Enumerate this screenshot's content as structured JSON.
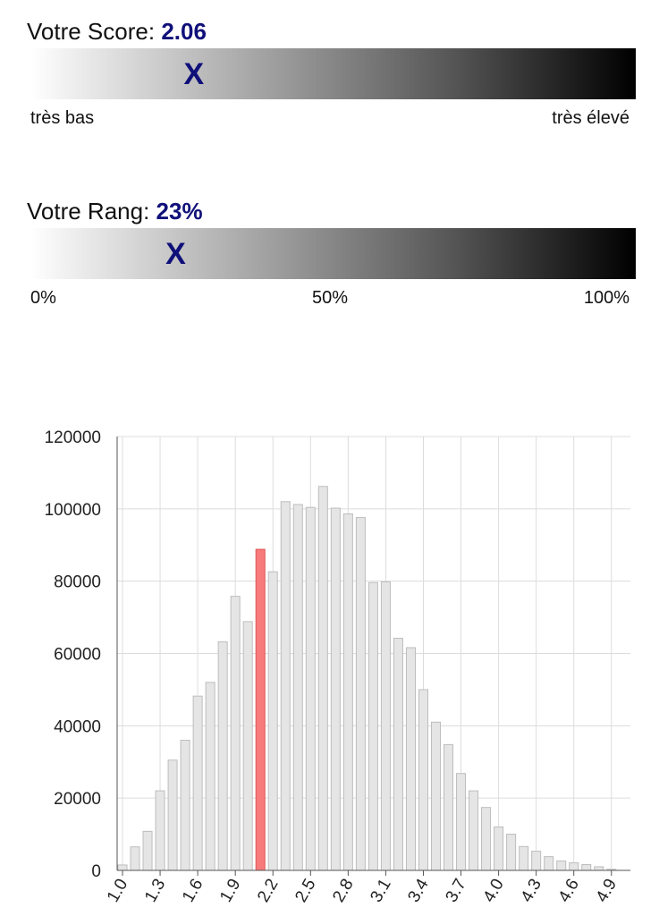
{
  "score": {
    "label": "Votre Score:",
    "value": "2.06",
    "marker": "X",
    "marker_fraction": 0.27,
    "scale_low": "très bas",
    "scale_high": "très élevé"
  },
  "rank": {
    "label": "Votre Rang:",
    "value": "23%",
    "marker": "X",
    "marker_fraction": 0.24,
    "scale_labels": [
      "0%",
      "50%",
      "100%"
    ]
  },
  "colors": {
    "accent_text": "#10107a",
    "bar_fill": "#e5e5e5",
    "bar_stroke": "#bdbdbd",
    "highlight_fill": "#f77b7b",
    "highlight_stroke": "#e05555"
  },
  "chart_data": {
    "type": "bar",
    "x": [
      1.0,
      1.1,
      1.2,
      1.3,
      1.4,
      1.5,
      1.6,
      1.7,
      1.8,
      1.9,
      2.0,
      2.1,
      2.2,
      2.3,
      2.4,
      2.5,
      2.6,
      2.7,
      2.8,
      2.9,
      3.0,
      3.1,
      3.2,
      3.3,
      3.4,
      3.5,
      3.6,
      3.7,
      3.8,
      3.9,
      4.0,
      4.1,
      4.2,
      4.3,
      4.4,
      4.5,
      4.6,
      4.7,
      4.8,
      4.9
    ],
    "values": [
      1500,
      6500,
      10800,
      22000,
      30500,
      36000,
      48200,
      52000,
      63200,
      75800,
      68800,
      88800,
      82600,
      102000,
      101200,
      100400,
      106200,
      100200,
      98600,
      97600,
      79600,
      79800,
      64200,
      61600,
      50000,
      41000,
      34800,
      26800,
      22000,
      17400,
      12000,
      10000,
      6600,
      5300,
      3800,
      2600,
      2100,
      1600,
      1000,
      300
    ],
    "highlight_index": 11,
    "tick_labels": [
      "1.0",
      "1.3",
      "1.6",
      "1.9",
      "2.2",
      "2.5",
      "2.8",
      "3.1",
      "3.4",
      "3.7",
      "4.0",
      "4.3",
      "4.6",
      "4.9"
    ],
    "y_ticks": [
      0,
      20000,
      40000,
      60000,
      80000,
      100000,
      120000
    ],
    "ylim": [
      0,
      120000
    ],
    "grid": true,
    "title": "",
    "xlabel": "",
    "ylabel": ""
  }
}
